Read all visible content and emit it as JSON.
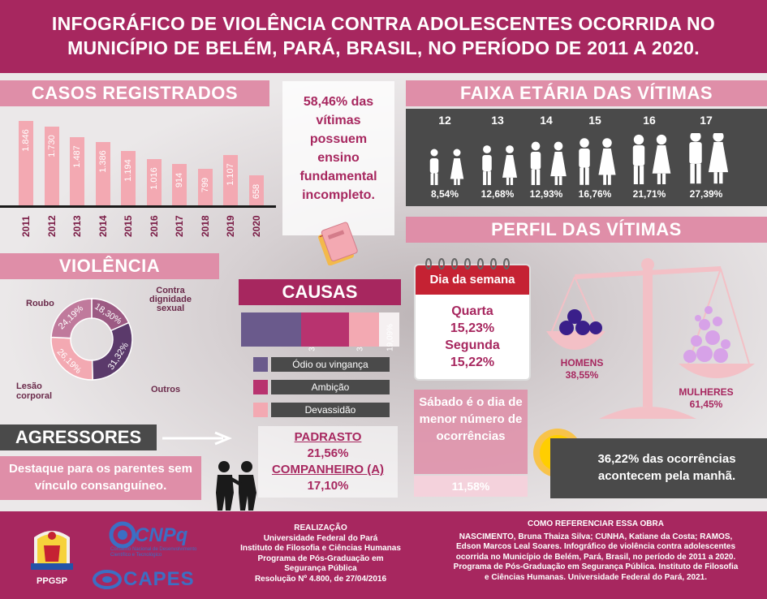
{
  "header": {
    "title_line1": "INFOGRÁFICO DE VIOLÊNCIA CONTRA ADOLESCENTES OCORRIDA NO",
    "title_line2": "MUNICÍPIO DE BELÉM, PARÁ, BRASIL, NO PERÍODO DE 2011 A 2020."
  },
  "casos": {
    "title": "CASOS REGISTRADOS",
    "years": [
      "2011",
      "2012",
      "2013",
      "2014",
      "2015",
      "2016",
      "2017",
      "2018",
      "2019",
      "2020"
    ],
    "values": [
      "1.846",
      "1.730",
      "1.487",
      "1.386",
      "1.194",
      "1.016",
      "914",
      "799",
      "1.107",
      "658"
    ],
    "numeric": [
      1846,
      1730,
      1487,
      1386,
      1194,
      1016,
      914,
      799,
      1107,
      658
    ]
  },
  "escolar": {
    "text": "58,46% das vítimas possuem ensino fundamental incompleto."
  },
  "faixa": {
    "title": "FAIXA ETÁRIA DAS VÍTIMAS",
    "ages": [
      "12",
      "13",
      "14",
      "15",
      "16",
      "17"
    ],
    "percents": [
      "8,54%",
      "12,68%",
      "12,93%",
      "16,76%",
      "21,71%",
      "27,39%"
    ]
  },
  "violencia": {
    "title": "VIOLÊNCIA",
    "labels": {
      "roubo": "Roubo",
      "contra": "Contra dignidade sexual",
      "outros": "Outros",
      "lesao": "Lesão corporal"
    },
    "slices": [
      {
        "label": "Contra dignidade sexual",
        "value": 18.3,
        "text": "18,30%",
        "color": "#9c5a83"
      },
      {
        "label": "Outros",
        "value": 31.32,
        "text": "31,32%",
        "color": "#5b3a6b"
      },
      {
        "label": "Lesão corporal",
        "value": 26.19,
        "text": "26,19%",
        "color": "#f3a9b2"
      },
      {
        "label": "Roubo",
        "value": 24.19,
        "text": "24,19%",
        "color": "#c07a9c"
      }
    ]
  },
  "causas": {
    "title": "CAUSAS",
    "segments": [
      {
        "text": "38,05%",
        "value": 38.05,
        "color": "#6a5a8c"
      },
      {
        "text": "30,51%",
        "value": 30.51,
        "color": "#b8336f"
      },
      {
        "text": "19,09%",
        "value": 19.09,
        "color": "#f3a9b2"
      }
    ],
    "legend": [
      {
        "label": "Ódio ou vingança",
        "color": "#6a5a8c"
      },
      {
        "label": "Ambição",
        "color": "#b8336f"
      },
      {
        "label": "Devassidão",
        "color": "#f3a9b2"
      }
    ]
  },
  "perfil": {
    "title": "PERFIL DAS VÍTIMAS",
    "calendar_header": "Dia da semana",
    "day1": "Quarta",
    "day1_pct": "15,23%",
    "day2": "Segunda",
    "day2_pct": "15,22%",
    "homens": "HOMENS",
    "homens_pct": "38,55%",
    "mulheres": "MULHERES",
    "mulheres_pct": "61,45%",
    "sabado_text": "Sábado é o dia de menor número de ocorrências",
    "sabado_pct": "11,58%",
    "manha_text": "36,22% das ocorrências acontecem pela manhã."
  },
  "agressores": {
    "title": "AGRESSORES",
    "destaque": "Destaque para os parentes sem vínculo consanguíneo.",
    "item1": "PADRASTO",
    "item1_pct": "21,56%",
    "item2": "COMPANHEIRO (A)",
    "item2_pct": "17,10%"
  },
  "footer": {
    "ppgsp": "PPGSP",
    "cnpq": "CNPq",
    "cnpq_sub": "Conselho Nacional de Desenvolvimento Científico e Tecnológico",
    "capes": "CAPES",
    "realizacao_title": "REALIZAÇÃO",
    "realizacao_lines": [
      "Universidade Federal do Pará",
      "Instituto de Filosofia e Ciências Humanas",
      "Programa de Pós-Graduação em",
      "Segurança Pública",
      "Resolução Nº 4.800, de 27/04/2016"
    ],
    "ref_title": "COMO REFERENCIAR ESSA OBRA",
    "ref_lines": [
      "NASCIMENTO, Bruna Thaiza Silva; CUNHA, Katiane da Costa; RAMOS,",
      "Edson Marcos Leal Soares. Infográfico de violência contra adolescentes",
      "ocorrida no Município de Belém, Pará, Brasil, no período de 2011 a 2020.",
      "Programa de Pós-Graduação em Segurança Pública. Instituto de Filosofia",
      "e Ciências Humanas. Universidade Federal do Pará, 2021."
    ]
  }
}
